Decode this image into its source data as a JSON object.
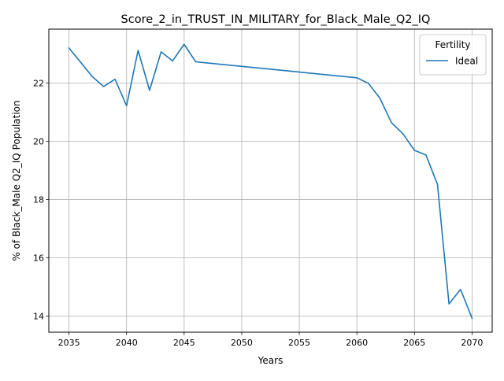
{
  "chart_data": {
    "type": "line",
    "title": "Score_2_in_TRUST_IN_MILITARY_for_Black_Male_Q2_IQ",
    "xlabel": "Years",
    "ylabel": "% of Black_Male Q2_IQ Population",
    "xlim": [
      2033.25,
      2071.75
    ],
    "ylim": [
      13.45,
      23.85
    ],
    "xticks": [
      2035,
      2040,
      2045,
      2050,
      2055,
      2060,
      2065,
      2070
    ],
    "yticks": [
      14,
      16,
      18,
      20,
      22
    ],
    "grid": true,
    "legend": {
      "title": "Fertility",
      "placement": "top-right"
    },
    "series": [
      {
        "name": "Ideal",
        "color": "#1f77b4",
        "x": [
          2035,
          2036,
          2037,
          2038,
          2039,
          2040,
          2041,
          2042,
          2043,
          2044,
          2045,
          2046,
          2060,
          2061,
          2062,
          2063,
          2064,
          2065,
          2066,
          2067,
          2068,
          2069,
          2070
        ],
        "values": [
          23.2,
          22.72,
          22.23,
          21.88,
          22.13,
          21.22,
          23.12,
          21.75,
          23.07,
          22.76,
          23.33,
          22.73,
          22.18,
          21.99,
          21.48,
          20.64,
          20.26,
          19.69,
          19.53,
          18.52,
          14.42,
          14.92,
          13.93
        ]
      }
    ]
  }
}
